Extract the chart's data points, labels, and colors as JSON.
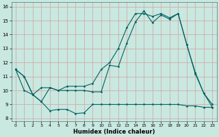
{
  "xlabel": "Humidex (Indice chaleur)",
  "bg_color": "#c8e8e0",
  "line_color": "#006060",
  "grid_color": "#d4a0a0",
  "ylim": [
    7.8,
    16.3
  ],
  "xlim": [
    -0.5,
    23.5
  ],
  "yticks": [
    8,
    9,
    10,
    11,
    12,
    13,
    14,
    15,
    16
  ],
  "xticks": [
    0,
    1,
    2,
    3,
    4,
    5,
    6,
    7,
    8,
    9,
    10,
    11,
    12,
    13,
    14,
    15,
    16,
    17,
    18,
    19,
    20,
    21,
    22,
    23
  ],
  "line1_x": [
    0,
    1,
    2,
    3,
    4,
    5,
    6,
    7,
    8,
    9,
    10,
    11,
    12,
    13,
    14,
    15,
    16,
    17,
    18,
    19,
    20,
    21,
    22,
    23
  ],
  "line1_y": [
    11.5,
    11.0,
    9.7,
    9.2,
    8.55,
    8.65,
    8.65,
    8.35,
    8.4,
    9.0,
    9.0,
    9.0,
    9.0,
    9.0,
    9.0,
    9.0,
    9.0,
    9.0,
    9.0,
    9.0,
    8.9,
    8.9,
    8.8,
    8.8
  ],
  "line2_x": [
    0,
    1,
    2,
    3,
    4,
    5,
    6,
    7,
    8,
    9,
    10,
    11,
    12,
    13,
    14,
    15,
    16,
    17,
    18,
    19,
    20,
    21,
    22,
    23
  ],
  "line2_y": [
    11.5,
    11.0,
    9.7,
    10.2,
    10.2,
    10.0,
    10.0,
    10.0,
    10.0,
    9.9,
    9.9,
    11.8,
    11.7,
    13.4,
    14.9,
    15.7,
    14.85,
    15.4,
    15.1,
    15.5,
    13.3,
    11.2,
    9.8,
    8.8
  ],
  "line3_x": [
    0,
    1,
    2,
    3,
    4,
    5,
    6,
    7,
    8,
    9,
    10,
    11,
    12,
    13,
    14,
    15,
    16,
    17,
    18,
    19,
    20,
    21,
    22,
    23
  ],
  "line3_y": [
    11.5,
    10.0,
    9.7,
    9.2,
    10.2,
    10.0,
    10.3,
    10.3,
    10.3,
    10.5,
    11.5,
    12.0,
    13.0,
    14.5,
    15.5,
    15.5,
    15.3,
    15.5,
    15.2,
    15.5,
    13.3,
    11.3,
    9.8,
    9.0
  ]
}
